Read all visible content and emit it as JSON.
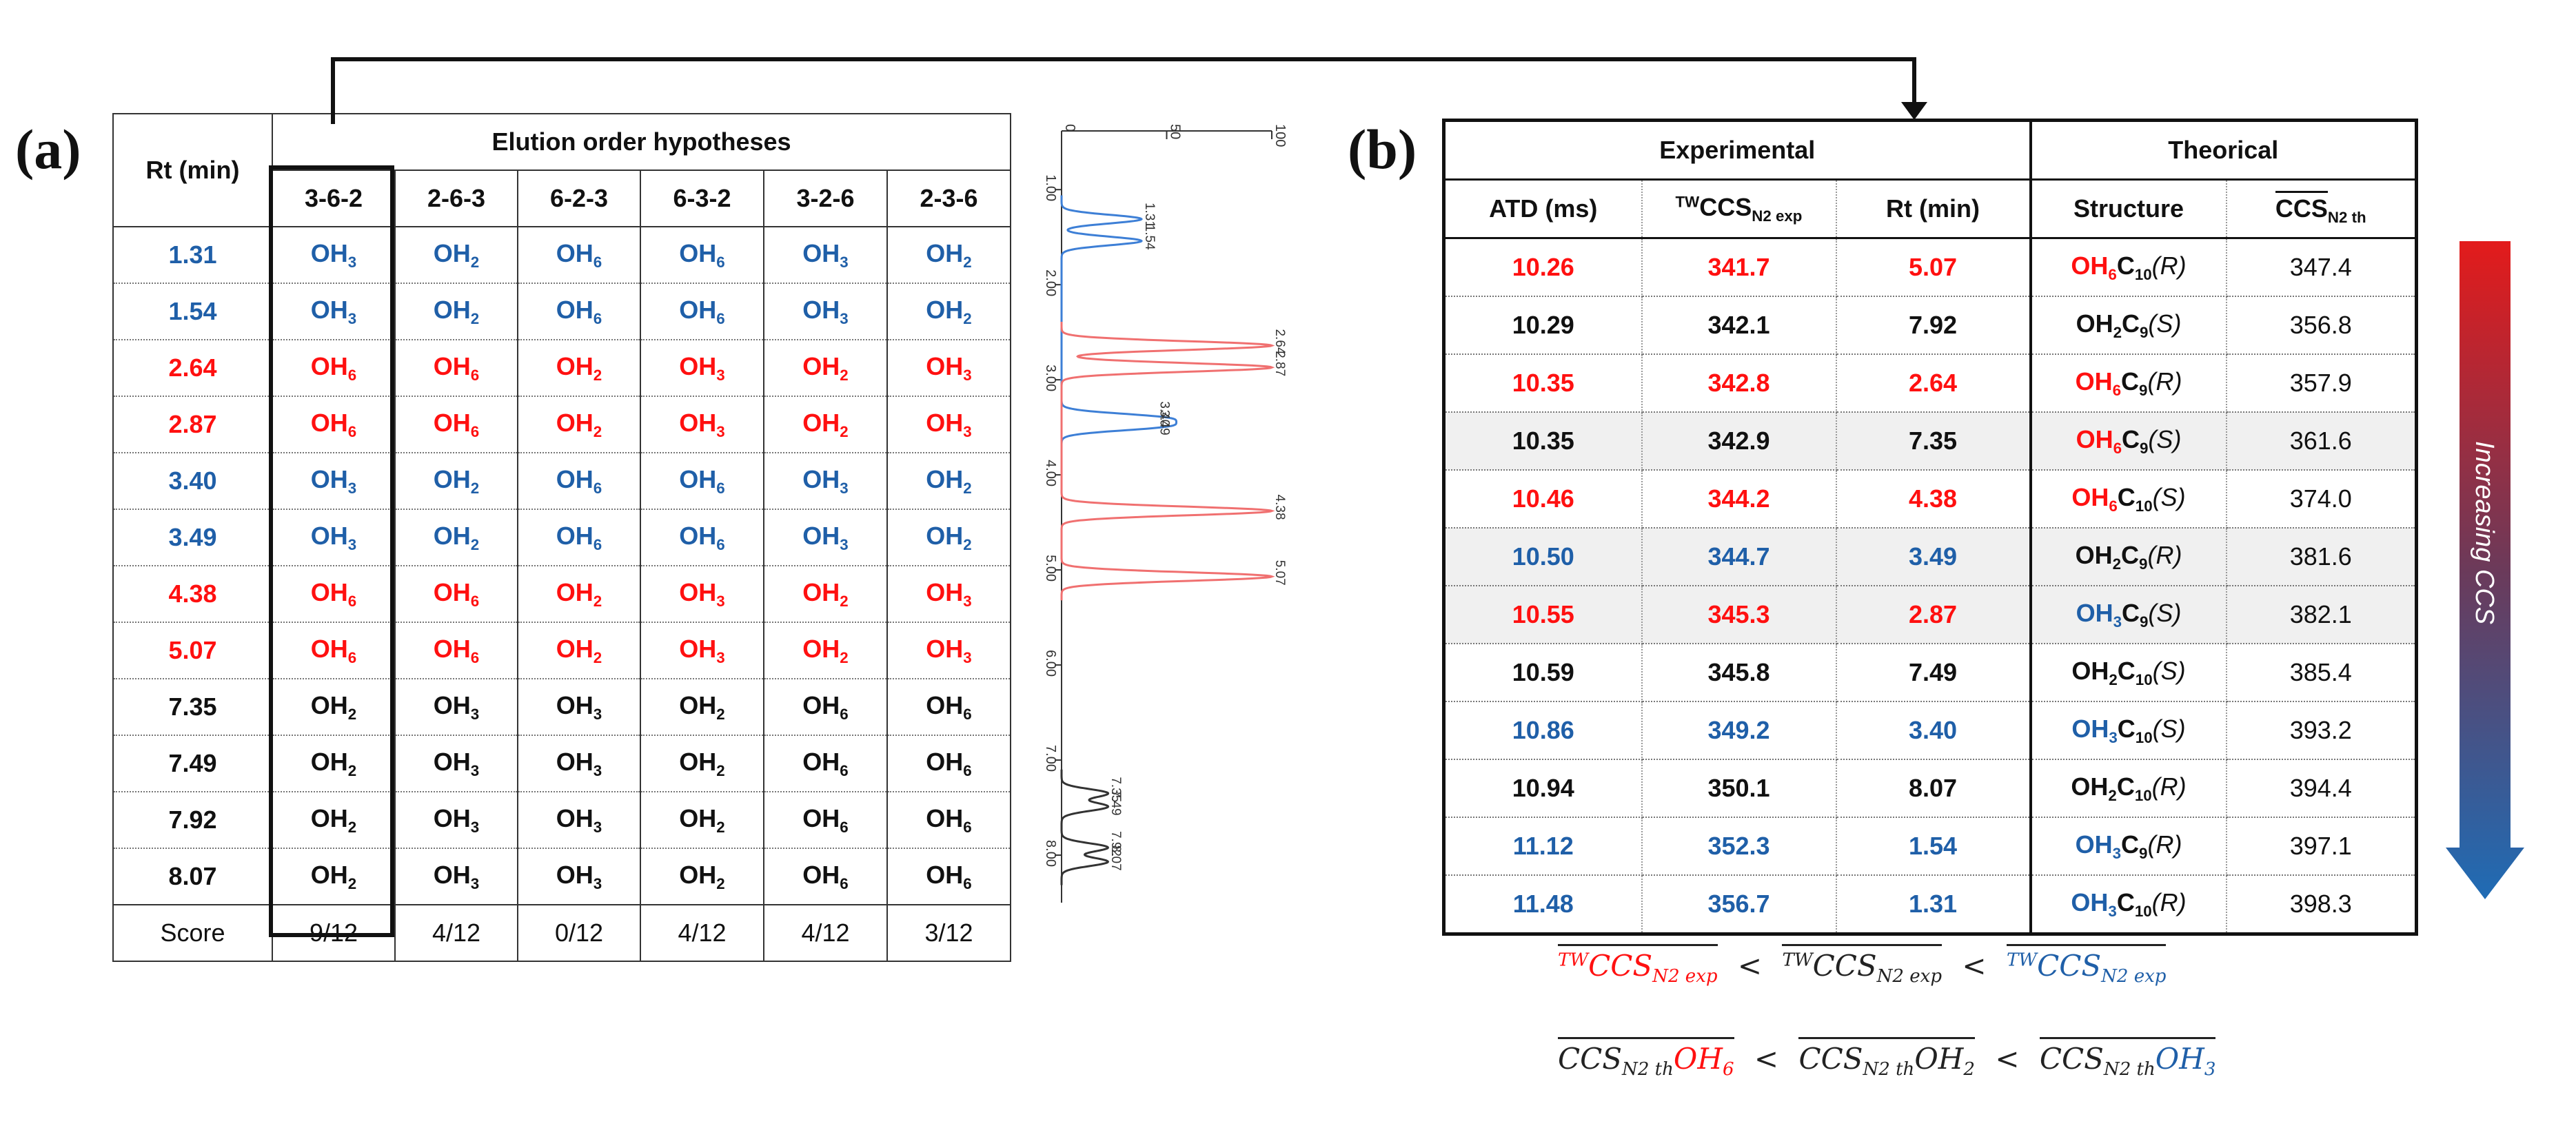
{
  "panel_a": {
    "label": "(a)",
    "rt_header": "Rt (min)",
    "hypotheses_header": "Elution order hypotheses",
    "hypotheses": [
      "3-6-2",
      "2-6-3",
      "6-2-3",
      "6-3-2",
      "3-2-6",
      "2-3-6"
    ],
    "rows": [
      {
        "rt": "1.31",
        "rt_color": "#1f5fa8",
        "cells": [
          [
            "3",
            "#1f5fa8"
          ],
          [
            "2",
            "#1f5fa8"
          ],
          [
            "6",
            "#1f5fa8"
          ],
          [
            "6",
            "#1f5fa8"
          ],
          [
            "3",
            "#1f5fa8"
          ],
          [
            "2",
            "#1f5fa8"
          ]
        ]
      },
      {
        "rt": "1.54",
        "rt_color": "#1f5fa8",
        "cells": [
          [
            "3",
            "#1f5fa8"
          ],
          [
            "2",
            "#1f5fa8"
          ],
          [
            "6",
            "#1f5fa8"
          ],
          [
            "6",
            "#1f5fa8"
          ],
          [
            "3",
            "#1f5fa8"
          ],
          [
            "2",
            "#1f5fa8"
          ]
        ]
      },
      {
        "rt": "2.64",
        "rt_color": "#ff1010",
        "cells": [
          [
            "6",
            "#ff1010"
          ],
          [
            "6",
            "#ff1010"
          ],
          [
            "2",
            "#ff1010"
          ],
          [
            "3",
            "#ff1010"
          ],
          [
            "2",
            "#ff1010"
          ],
          [
            "3",
            "#ff1010"
          ]
        ]
      },
      {
        "rt": "2.87",
        "rt_color": "#ff1010",
        "cells": [
          [
            "6",
            "#ff1010"
          ],
          [
            "6",
            "#ff1010"
          ],
          [
            "2",
            "#ff1010"
          ],
          [
            "3",
            "#ff1010"
          ],
          [
            "2",
            "#ff1010"
          ],
          [
            "3",
            "#ff1010"
          ]
        ]
      },
      {
        "rt": "3.40",
        "rt_color": "#1f5fa8",
        "cells": [
          [
            "3",
            "#1f5fa8"
          ],
          [
            "2",
            "#1f5fa8"
          ],
          [
            "6",
            "#1f5fa8"
          ],
          [
            "6",
            "#1f5fa8"
          ],
          [
            "3",
            "#1f5fa8"
          ],
          [
            "2",
            "#1f5fa8"
          ]
        ]
      },
      {
        "rt": "3.49",
        "rt_color": "#1f5fa8",
        "cells": [
          [
            "3",
            "#1f5fa8"
          ],
          [
            "2",
            "#1f5fa8"
          ],
          [
            "6",
            "#1f5fa8"
          ],
          [
            "6",
            "#1f5fa8"
          ],
          [
            "3",
            "#1f5fa8"
          ],
          [
            "2",
            "#1f5fa8"
          ]
        ]
      },
      {
        "rt": "4.38",
        "rt_color": "#ff1010",
        "cells": [
          [
            "6",
            "#ff1010"
          ],
          [
            "6",
            "#ff1010"
          ],
          [
            "2",
            "#ff1010"
          ],
          [
            "3",
            "#ff1010"
          ],
          [
            "2",
            "#ff1010"
          ],
          [
            "3",
            "#ff1010"
          ]
        ]
      },
      {
        "rt": "5.07",
        "rt_color": "#ff1010",
        "cells": [
          [
            "6",
            "#ff1010"
          ],
          [
            "6",
            "#ff1010"
          ],
          [
            "2",
            "#ff1010"
          ],
          [
            "3",
            "#ff1010"
          ],
          [
            "2",
            "#ff1010"
          ],
          [
            "3",
            "#ff1010"
          ]
        ]
      },
      {
        "rt": "7.35",
        "rt_color": "#111111",
        "cells": [
          [
            "2",
            "#111111"
          ],
          [
            "3",
            "#111111"
          ],
          [
            "3",
            "#111111"
          ],
          [
            "2",
            "#111111"
          ],
          [
            "6",
            "#111111"
          ],
          [
            "6",
            "#111111"
          ]
        ]
      },
      {
        "rt": "7.49",
        "rt_color": "#111111",
        "cells": [
          [
            "2",
            "#111111"
          ],
          [
            "3",
            "#111111"
          ],
          [
            "3",
            "#111111"
          ],
          [
            "2",
            "#111111"
          ],
          [
            "6",
            "#111111"
          ],
          [
            "6",
            "#111111"
          ]
        ]
      },
      {
        "rt": "7.92",
        "rt_color": "#111111",
        "cells": [
          [
            "2",
            "#111111"
          ],
          [
            "3",
            "#111111"
          ],
          [
            "3",
            "#111111"
          ],
          [
            "2",
            "#111111"
          ],
          [
            "6",
            "#111111"
          ],
          [
            "6",
            "#111111"
          ]
        ]
      },
      {
        "rt": "8.07",
        "rt_color": "#111111",
        "cells": [
          [
            "2",
            "#111111"
          ],
          [
            "3",
            "#111111"
          ],
          [
            "3",
            "#111111"
          ],
          [
            "2",
            "#111111"
          ],
          [
            "6",
            "#111111"
          ],
          [
            "6",
            "#111111"
          ]
        ]
      }
    ],
    "score_label": "Score",
    "scores": [
      "9/12",
      "4/12",
      "0/12",
      "4/12",
      "4/12",
      "3/12"
    ]
  },
  "chart_data": {
    "type": "line",
    "title": "",
    "orientation": "vertical (time axis runs downward)",
    "x_axis_ticks": [
      "0",
      "50",
      "100"
    ],
    "x_range": [
      0,
      100
    ],
    "time_axis_ticks": [
      "1.00",
      "2.00",
      "3.00",
      "4.00",
      "5.00",
      "6.00",
      "7.00",
      "8.00"
    ],
    "time_range": [
      0.6,
      8.5
    ],
    "series": [
      {
        "name": "OH3",
        "color": "#3d7fd6",
        "peaks": [
          {
            "rt": 1.31,
            "intensity": 38
          },
          {
            "rt": 1.54,
            "intensity": 38
          },
          {
            "rt": 3.4,
            "intensity": 45
          },
          {
            "rt": 3.49,
            "intensity": 45
          }
        ],
        "labels": [
          "1.31",
          "1.54",
          "3.40",
          "3.49"
        ]
      },
      {
        "name": "OH6",
        "color": "#f07070",
        "peaks": [
          {
            "rt": 2.64,
            "intensity": 100
          },
          {
            "rt": 2.87,
            "intensity": 100
          },
          {
            "rt": 4.38,
            "intensity": 100
          },
          {
            "rt": 5.07,
            "intensity": 100
          }
        ],
        "labels": [
          "2.64",
          "2.87",
          "4.38",
          "5.07"
        ]
      },
      {
        "name": "OH2",
        "color": "#333333",
        "peaks": [
          {
            "rt": 7.35,
            "intensity": 22
          },
          {
            "rt": 7.49,
            "intensity": 22
          },
          {
            "rt": 7.92,
            "intensity": 22
          },
          {
            "rt": 8.07,
            "intensity": 22
          }
        ],
        "labels": [
          "7.35",
          "7.49",
          "7.92",
          "8.07"
        ]
      }
    ]
  },
  "panel_b": {
    "label": "(b)",
    "experimental_header": "Experimental",
    "theorical_header": "Theorical",
    "col_atd": "ATD (ms)",
    "col_ccs_exp_pre": "TW",
    "col_ccs_exp_main": "CCS",
    "col_ccs_exp_sub": "N2 exp",
    "col_rt": "Rt (min)",
    "col_structure": "Structure",
    "col_ccs_th_main": "CCS",
    "col_ccs_th_sub": "N2 th",
    "rows": [
      {
        "atd": "10.26",
        "ccs_exp": "341.7",
        "rt": "5.07",
        "color": "#ff1010",
        "oh": "OH",
        "oh_sub": "6",
        "oh_color": "#ff1010",
        "c_sub": "10",
        "iso": "R",
        "ccs_th": "347.4",
        "shade": false
      },
      {
        "atd": "10.29",
        "ccs_exp": "342.1",
        "rt": "7.92",
        "color": "#111111",
        "oh": "OH",
        "oh_sub": "2",
        "oh_color": "#111111",
        "c_sub": "9",
        "iso": "S",
        "ccs_th": "356.8",
        "shade": false
      },
      {
        "atd": "10.35",
        "ccs_exp": "342.8",
        "rt": "2.64",
        "color": "#ff1010",
        "oh": "OH",
        "oh_sub": "6",
        "oh_color": "#ff1010",
        "c_sub": "9",
        "iso": "R",
        "ccs_th": "357.9",
        "shade": false
      },
      {
        "atd": "10.35",
        "ccs_exp": "342.9",
        "rt": "7.35",
        "color": "#111111",
        "oh": "OH",
        "oh_sub": "6",
        "oh_color": "#ff1010",
        "c_sub": "9",
        "iso": "S",
        "ccs_th": "361.6",
        "shade": true
      },
      {
        "atd": "10.46",
        "ccs_exp": "344.2",
        "rt": "4.38",
        "color": "#ff1010",
        "oh": "OH",
        "oh_sub": "6",
        "oh_color": "#ff1010",
        "c_sub": "10",
        "iso": "S",
        "ccs_th": "374.0",
        "shade": false
      },
      {
        "atd": "10.50",
        "ccs_exp": "344.7",
        "rt": "3.49",
        "color": "#1f5fa8",
        "oh": "OH",
        "oh_sub": "2",
        "oh_color": "#111111",
        "c_sub": "9",
        "iso": "R",
        "ccs_th": "381.6",
        "shade": true
      },
      {
        "atd": "10.55",
        "ccs_exp": "345.3",
        "rt": "2.87",
        "color": "#ff1010",
        "oh": "OH",
        "oh_sub": "3",
        "oh_color": "#1f5fa8",
        "c_sub": "9",
        "iso": "S",
        "ccs_th": "382.1",
        "shade": true
      },
      {
        "atd": "10.59",
        "ccs_exp": "345.8",
        "rt": "7.49",
        "color": "#111111",
        "oh": "OH",
        "oh_sub": "2",
        "oh_color": "#111111",
        "c_sub": "10",
        "iso": "S",
        "ccs_th": "385.4",
        "shade": false
      },
      {
        "atd": "10.86",
        "ccs_exp": "349.2",
        "rt": "3.40",
        "color": "#1f5fa8",
        "oh": "OH",
        "oh_sub": "3",
        "oh_color": "#1f5fa8",
        "c_sub": "10",
        "iso": "S",
        "ccs_th": "393.2",
        "shade": false
      },
      {
        "atd": "10.94",
        "ccs_exp": "350.1",
        "rt": "8.07",
        "color": "#111111",
        "oh": "OH",
        "oh_sub": "2",
        "oh_color": "#111111",
        "c_sub": "10",
        "iso": "R",
        "ccs_th": "394.4",
        "shade": false
      },
      {
        "atd": "11.12",
        "ccs_exp": "352.3",
        "rt": "1.54",
        "color": "#1f5fa8",
        "oh": "OH",
        "oh_sub": "3",
        "oh_color": "#1f5fa8",
        "c_sub": "9",
        "iso": "R",
        "ccs_th": "397.1",
        "shade": false
      },
      {
        "atd": "11.48",
        "ccs_exp": "356.7",
        "rt": "1.31",
        "color": "#1f5fa8",
        "oh": "OH",
        "oh_sub": "3",
        "oh_color": "#1f5fa8",
        "c_sub": "10",
        "iso": "R",
        "ccs_th": "398.3",
        "shade": false
      }
    ],
    "arrow_label": "Increasing CCS"
  },
  "formulas": {
    "line1": {
      "tw": "TW",
      "ccs": "CCS",
      "sub": "N2 exp",
      "lt": "<"
    },
    "line2": {
      "ccs": "CCS",
      "sub": "N2 th",
      "oh6": "OH",
      "oh6_sub": "6",
      "oh2": "OH",
      "oh2_sub": "2",
      "oh3": "OH",
      "oh3_sub": "3",
      "lt": "<"
    }
  }
}
